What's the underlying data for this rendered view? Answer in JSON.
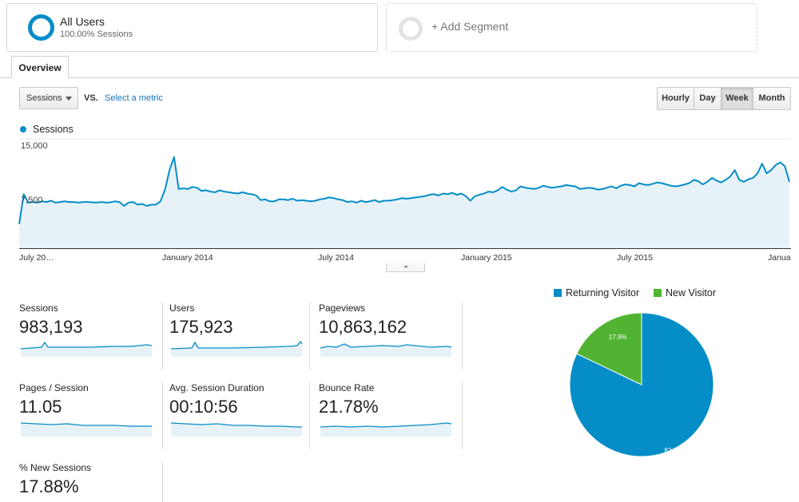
{
  "segments": {
    "all_users": {
      "title": "All Users",
      "subtitle": "100.00% Sessions"
    },
    "add_segment": {
      "label": "+ Add Segment"
    }
  },
  "tabs": {
    "overview": "Overview"
  },
  "controls": {
    "metric": "Sessions",
    "vs": "VS.",
    "select_metric": "Select a metric",
    "granularity": [
      "Hourly",
      "Day",
      "Week",
      "Month"
    ],
    "granularity_selected": "Week"
  },
  "colors": {
    "accent": "#058dc7",
    "area_fill": "#e6f2f8",
    "new_visitor": "#50b432"
  },
  "chart_data": [
    {
      "type": "area",
      "legend": "Sessions",
      "y_ticks": [
        "15,000",
        "7,500"
      ],
      "x_ticks": [
        "July 20…",
        "January 2014",
        "July 2014",
        "January 2015",
        "July 2015",
        "Janua"
      ],
      "ylim": [
        0,
        16800
      ],
      "values": [
        3700,
        8300,
        7000,
        7100,
        7000,
        7200,
        7100,
        7300,
        7000,
        7100,
        7200,
        7100,
        7100,
        7000,
        7100,
        7100,
        7050,
        7000,
        7100,
        7000,
        7050,
        7200,
        7100,
        6500,
        7000,
        7100,
        6700,
        6800,
        6500,
        6700,
        6700,
        7200,
        9000,
        12000,
        14000,
        9100,
        9200,
        9100,
        9400,
        9300,
        8800,
        8900,
        8700,
        8600,
        8900,
        8700,
        8600,
        8500,
        8400,
        8600,
        8400,
        8300,
        8100,
        7400,
        7500,
        7200,
        7200,
        7500,
        7500,
        7400,
        7600,
        7300,
        7400,
        7300,
        7200,
        7300,
        7500,
        7600,
        7800,
        7700,
        7500,
        7400,
        7100,
        7200,
        7000,
        7300,
        7100,
        7200,
        7400,
        7100,
        7300,
        7300,
        7400,
        7500,
        7700,
        7600,
        7700,
        7800,
        7900,
        8000,
        8200,
        8300,
        8100,
        8400,
        8300,
        8500,
        8200,
        8400,
        8000,
        7300,
        8000,
        8200,
        8400,
        8700,
        8600,
        8900,
        9400,
        9000,
        8700,
        8900,
        9500,
        9300,
        9200,
        9100,
        9300,
        9600,
        9400,
        9300,
        9400,
        9500,
        9700,
        9600,
        9500,
        9100,
        9200,
        9300,
        9200,
        9000,
        9100,
        9300,
        9500,
        9200,
        9600,
        9800,
        9700,
        9500,
        10000,
        9800,
        9700,
        9900,
        10100,
        10000,
        9800,
        9600,
        9500,
        9600,
        9800,
        10000,
        10500,
        10300,
        9800,
        10200,
        10800,
        10400,
        10100,
        10500,
        11000,
        12000,
        10500,
        10200,
        10600,
        10800,
        11500,
        13000,
        11500,
        12000,
        12800,
        13200,
        12600,
        10200
      ]
    },
    {
      "type": "pie",
      "legend": [
        "Returning Visitor",
        "New Visitor"
      ],
      "slices": [
        {
          "name": "Returning Visitor",
          "value": 82.1,
          "label": "82.1%",
          "color": "#058dc7"
        },
        {
          "name": "New Visitor",
          "value": 17.9,
          "label": "17.9%",
          "color": "#50b432"
        }
      ]
    }
  ],
  "scorecards": [
    {
      "label": "Sessions",
      "value": "983,193"
    },
    {
      "label": "Users",
      "value": "175,923"
    },
    {
      "label": "Pageviews",
      "value": "10,863,162"
    },
    {
      "label": "Pages / Session",
      "value": "11.05"
    },
    {
      "label": "Avg. Session Duration",
      "value": "00:10:56"
    },
    {
      "label": "Bounce Rate",
      "value": "21.78%"
    },
    {
      "label": "% New Sessions",
      "value": "17.88%"
    }
  ]
}
